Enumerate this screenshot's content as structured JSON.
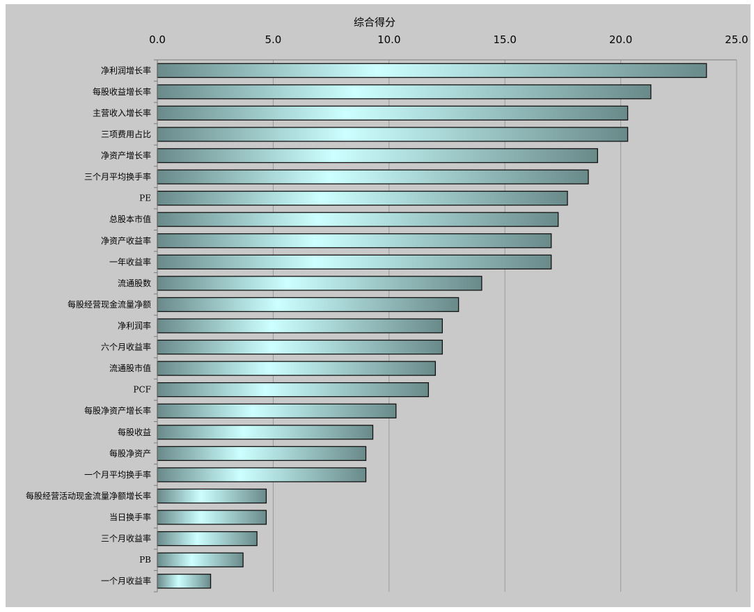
{
  "chart_data": {
    "type": "bar",
    "orientation": "horizontal",
    "title": "综合得分",
    "xlabel": "",
    "ylabel": "",
    "xlim": [
      0,
      25
    ],
    "x_ticks": [
      "0.0",
      "5.0",
      "10.0",
      "15.0",
      "20.0",
      "25.0"
    ],
    "x_axis_position": "top",
    "grid": true,
    "categories": [
      "净利润增长率",
      "每股收益增长率",
      "主营收入增长率",
      "三项费用占比",
      "净资产增长率",
      "三个月平均换手率",
      "PE",
      "总股本市值",
      "净资产收益率",
      "一年收益率",
      "流通股数",
      "每股经营现金流量净额",
      "净利润率",
      "六个月收益率",
      "流通股市值",
      "PCF",
      "每股净资产增长率",
      "每股收益",
      "每股净资产",
      "一个月平均换手率",
      "每股经营活动现金流量净额增长率",
      "当日换手率",
      "三个月收益率",
      "PB",
      "一个月收益率"
    ],
    "values": [
      23.7,
      21.3,
      20.3,
      20.3,
      19.0,
      18.6,
      17.7,
      17.3,
      17.0,
      17.0,
      14.0,
      13.0,
      12.3,
      12.3,
      12.0,
      11.7,
      10.3,
      9.3,
      9.0,
      9.0,
      4.7,
      4.7,
      4.3,
      3.7,
      2.3
    ],
    "colors": {
      "bar_edge": "#6a8a8a",
      "bar_mid": "#ccffff",
      "plot_bg": "#c9c9c9",
      "grid": "#9a9a9a"
    }
  }
}
